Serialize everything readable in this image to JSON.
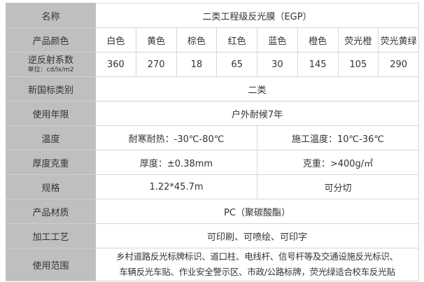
{
  "table": {
    "name": {
      "label": "名称",
      "value": "二类工程级反光膜（EGP）"
    },
    "colors": {
      "label": "产品颜色",
      "values": [
        "白色",
        "黄色",
        "棕色",
        "红色",
        "蓝色",
        "橙色",
        "荧光橙",
        "荧光黄绿"
      ]
    },
    "retro": {
      "label": "逆反射系数",
      "unit": "单位：cd/lx/m2",
      "values": [
        "360",
        "270",
        "18",
        "65",
        "30",
        "145",
        "105",
        "290"
      ]
    },
    "class": {
      "label": "新国标类别",
      "value": "二类"
    },
    "life": {
      "label": "使用年限",
      "value": "户外耐候7年"
    },
    "temp": {
      "label": "温度",
      "left": "耐寒耐热：-30℃-80℃",
      "right": "施工温度：10℃-36℃"
    },
    "thick": {
      "label": "厚度克重",
      "left": "厚度：±0.38mm",
      "right": "克重：>400g/㎡"
    },
    "spec": {
      "label": "规格",
      "left": "1.22*45.7m",
      "right": "可分切"
    },
    "material": {
      "label": "产品材质",
      "value": "PC（聚碳酸酯）"
    },
    "process": {
      "label": "加工工艺",
      "value": "可印刷、可喷绘、可印字"
    },
    "usage": {
      "label": "使用范围",
      "line1": "乡村道路反光标牌标识、道口柱、电线杆、信号杆等及交通设施反光标识、",
      "line2": "车辆反光车贴、作业安全警示区、市政/公路标牌，荧光绿适合校车反光贴"
    }
  },
  "colors": {
    "label_bg": "#bfbfbf",
    "border": "#d6d6d6",
    "text": "#333333"
  }
}
